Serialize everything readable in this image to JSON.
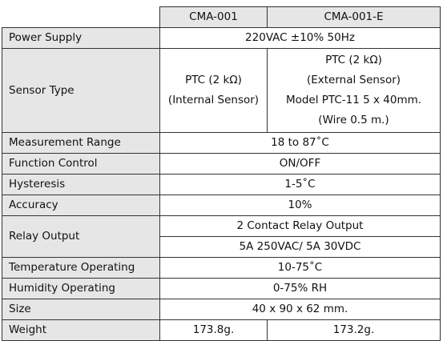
{
  "table": {
    "header": [
      "CMA-001",
      "CMA-001-E"
    ],
    "rows": [
      {
        "label": "Power Supply",
        "value": "220VAC ±10% 50Hz"
      },
      {
        "label": "Sensor Type",
        "values": [
          [
            "PTC (2 kΩ)",
            "(Internal Sensor)"
          ],
          [
            "PTC (2 kΩ)",
            "(External Sensor)",
            "Model PTC-11 5 x 40mm.",
            "(Wire 0.5 m.)"
          ]
        ]
      },
      {
        "label": "Measurement Range",
        "value": "18 to 87˚C"
      },
      {
        "label": "Function Control",
        "value": "ON/OFF"
      },
      {
        "label": "Hysteresis",
        "value": "1-5˚C"
      },
      {
        "label": "Accuracy",
        "value": "10%"
      },
      {
        "label": "Relay Output",
        "lines": [
          "2 Contact Relay Output",
          "5A 250VAC/ 5A 30VDC"
        ]
      },
      {
        "label": "Temperature Operating",
        "value": "10-75˚C"
      },
      {
        "label": "Humidity Operating",
        "value": "0-75% RH"
      },
      {
        "label": "Size",
        "value": "40 x 90 x 62 mm."
      },
      {
        "label": "Weight",
        "values": [
          "173.8g.",
          "173.2g."
        ]
      }
    ]
  }
}
